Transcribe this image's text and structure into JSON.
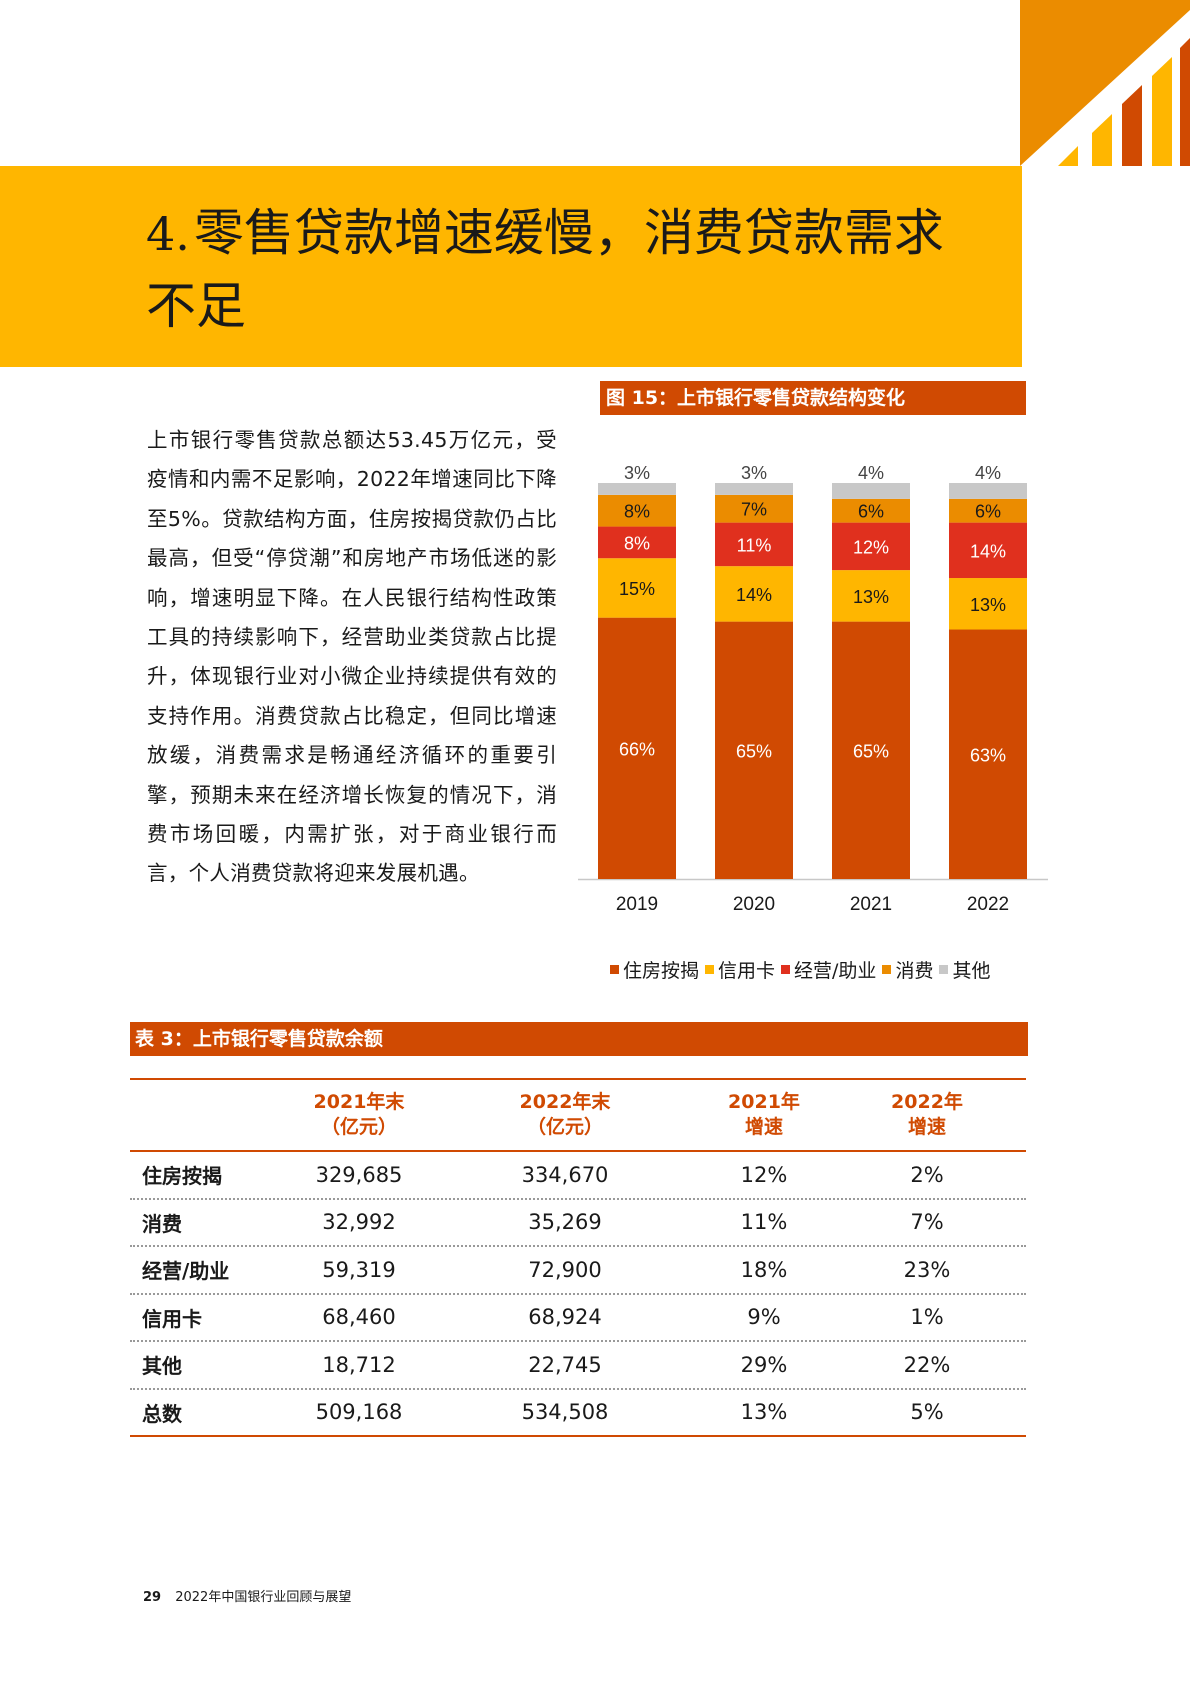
{
  "title": {
    "number": "4.",
    "text": "零售贷款增速缓慢，消费贷款需求不足"
  },
  "body_text": "上市银行零售贷款总额达53.45万亿元，受疫情和内需不足影响，2022年增速同比下降至5%。贷款结构方面，住房按揭贷款仍占比最高，但受“停贷潮”和房地产市场低迷的影响，增速明显下降。在人民银行结构性政策工具的持续影响下，经营助业类贷款占比提升，体现银行业对小微企业持续提供有效的支持作用。消费贷款占比稳定，但同比增速放缓，消费需求是畅通经济循环的重要引擎，预期未来在经济增长恢复的情况下，消费市场回暖，内需扩张，对于商业银行而言，个人消费贷款将迎来发展机遇。",
  "figure_caption": "图 15：上市银行零售贷款结构变化",
  "chart_data": {
    "type": "bar",
    "stacked": true,
    "unit": "%",
    "categories": [
      "2019",
      "2020",
      "2021",
      "2022"
    ],
    "series": [
      {
        "name": "住房按揭",
        "color": "#D04A02",
        "values": [
          66,
          65,
          65,
          63
        ]
      },
      {
        "name": "信用卡",
        "color": "#FFB600",
        "values": [
          15,
          14,
          13,
          13
        ]
      },
      {
        "name": "经营/助业",
        "color": "#E0301E",
        "values": [
          8,
          11,
          12,
          14
        ]
      },
      {
        "name": "消费",
        "color": "#EB8C00",
        "values": [
          8,
          7,
          6,
          6
        ]
      },
      {
        "name": "其他",
        "color": "#C8C8C8",
        "values": [
          3,
          3,
          4,
          4
        ]
      }
    ],
    "legend_position": "bottom",
    "grid": false
  },
  "table_caption": "表 3：上市银行零售贷款余额",
  "table": {
    "headers": [
      [
        "",
        ""
      ],
      [
        "2021年末",
        "（亿元）"
      ],
      [
        "2022年末",
        "（亿元）"
      ],
      [
        "2021年",
        "增速"
      ],
      [
        "2022年",
        "增速"
      ]
    ],
    "rows": [
      [
        "住房按揭",
        "329,685",
        "334,670",
        "12%",
        "2%"
      ],
      [
        "消费",
        "32,992",
        "35,269",
        "11%",
        "7%"
      ],
      [
        "经营/助业",
        "59,319",
        "72,900",
        "18%",
        "23%"
      ],
      [
        "信用卡",
        "68,460",
        "68,924",
        "9%",
        "1%"
      ],
      [
        "其他",
        "18,712",
        "22,745",
        "29%",
        "22%"
      ],
      [
        "总数",
        "509,168",
        "534,508",
        "13%",
        "5%"
      ]
    ]
  },
  "footer": {
    "page_number": "29",
    "report_title": "2022年中国银行业回顾与展望"
  },
  "colors": {
    "orange_dark": "#D04A02",
    "yellow": "#FFB600",
    "orange": "#EB8C00",
    "red": "#E0301E",
    "grey": "#C8C8C8"
  }
}
